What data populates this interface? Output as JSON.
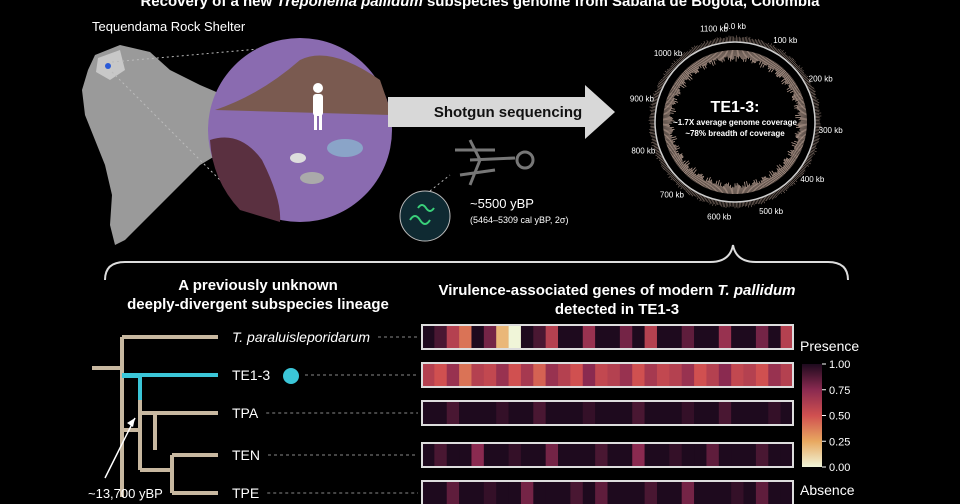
{
  "title": {
    "prefix": "Recovery of a new ",
    "italic": "Treponema pallidum",
    "suffix": " subspecies genome from Sabana de Bogotá, Colombia"
  },
  "site": "Tequendama Rock Shelter",
  "arrow_label": "Shotgun sequencing",
  "age": {
    "main": "~5500 yBP",
    "range": "(5464–5309 cal yBP, 2σ)"
  },
  "genome": {
    "labels": [
      "0.0 kb",
      "100 kb",
      "200 kb",
      "300 kb",
      "400 kb",
      "500 kb",
      "600 kb",
      "700 kb",
      "800 kb",
      "900 kb",
      "1000 kb",
      "1100 kb"
    ],
    "name": "TE1-3:",
    "coverage": "~1.7X average genome coverage",
    "breadth": "~78% breadth of coverage"
  },
  "lineage": {
    "line1": "A previously unknown",
    "line2": "deeply-divergent subspecies lineage"
  },
  "genes_heading": {
    "line1": "Virulence-associated genes of modern ",
    "italic": "T. pallidum",
    "line2": "detected in TE1-3"
  },
  "tree": {
    "tips": [
      "T. paraluisleporidarum",
      "TE1-3",
      "TPA",
      "TEN",
      "TPE"
    ],
    "node_age": "~13,700 yBP"
  },
  "heatmap": {
    "rows": [
      [
        1,
        0.9,
        0.6,
        0.4,
        1,
        0.8,
        0.2,
        0,
        1,
        0.9,
        0.6,
        1,
        1,
        0.7,
        1,
        1,
        0.8,
        1,
        0.6,
        1,
        1,
        0.85,
        1,
        1,
        0.7,
        1,
        1,
        0.8,
        1,
        0.6
      ],
      [
        0.6,
        0.5,
        0.7,
        0.4,
        0.6,
        0.55,
        0.7,
        0.5,
        0.65,
        0.45,
        0.7,
        0.6,
        0.5,
        0.75,
        0.55,
        0.6,
        0.7,
        0.5,
        0.65,
        0.55,
        0.6,
        0.7,
        0.5,
        0.6,
        0.75,
        0.55,
        0.6,
        0.5,
        0.7,
        0.6
      ],
      [
        1,
        1,
        0.9,
        1,
        1,
        1,
        0.95,
        1,
        1,
        0.9,
        1,
        1,
        1,
        0.95,
        1,
        1,
        1,
        0.9,
        1,
        1,
        1,
        0.95,
        1,
        1,
        0.9,
        1,
        1,
        1,
        0.95,
        1
      ],
      [
        1,
        0.9,
        1,
        1,
        0.75,
        1,
        1,
        0.95,
        1,
        1,
        0.8,
        1,
        1,
        1,
        0.9,
        1,
        1,
        0.75,
        1,
        1,
        0.95,
        1,
        1,
        0.85,
        1,
        1,
        1,
        0.9,
        1,
        1
      ],
      [
        1,
        1,
        0.85,
        1,
        1,
        0.95,
        1,
        1,
        0.8,
        1,
        1,
        1,
        0.9,
        1,
        0.85,
        1,
        1,
        1,
        0.9,
        1,
        1,
        0.8,
        1,
        1,
        1,
        0.95,
        1,
        0.85,
        1,
        1
      ]
    ],
    "legend_top": "Presence",
    "legend_bottom": "Absence",
    "ticks": [
      {
        "value": 1,
        "label": "1.00"
      },
      {
        "value": 0.75,
        "label": "0.75"
      },
      {
        "value": 0.5,
        "label": "0.50"
      },
      {
        "value": 0.25,
        "label": "0.25"
      },
      {
        "value": 0,
        "label": "0.00"
      }
    ]
  }
}
